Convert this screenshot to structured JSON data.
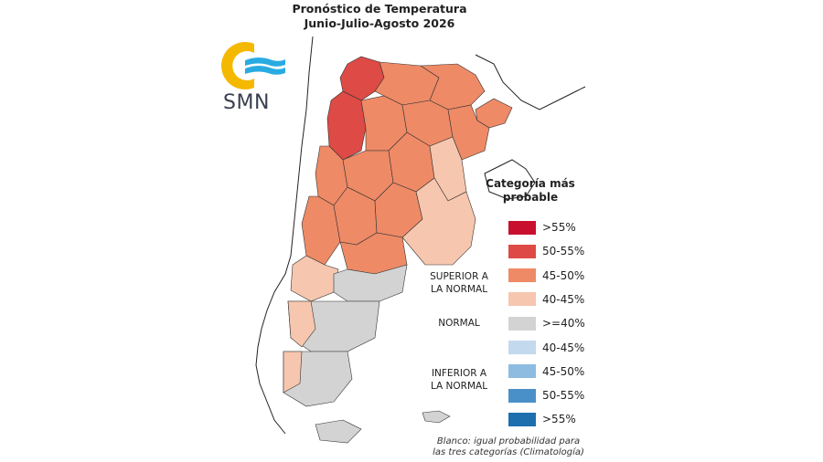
{
  "title": {
    "line1": "Pronóstico de Temperatura",
    "line2": "Junio-Julio-Agosto 2026"
  },
  "logo": {
    "text": "SMN",
    "colors": {
      "sun": "#F5B800",
      "waves": "#29ABE2",
      "text": "#3A3F51"
    }
  },
  "legend": {
    "title_line1": "Categoría más",
    "title_line2": "probable",
    "items": [
      {
        "label": ">55%",
        "color": "#C8102E"
      },
      {
        "label": "50-55%",
        "color": "#DE4A45"
      },
      {
        "label": "45-50%",
        "color": "#EE8A66"
      },
      {
        "label": "40-45%",
        "color": "#F6C6AE"
      },
      {
        "label": ">=40%",
        "color": "#D3D3D3"
      },
      {
        "label": "40-45%",
        "color": "#C3D9EE"
      },
      {
        "label": "45-50%",
        "color": "#8DBCE0"
      },
      {
        "label": "50-55%",
        "color": "#4A90C8"
      },
      {
        "label": ">55%",
        "color": "#1E6FAE"
      }
    ],
    "groups": {
      "superior_line1": "SUPERIOR A",
      "superior_line2": "LA NORMAL",
      "normal": "NORMAL",
      "inferior_line1": "INFERIOR A",
      "inferior_line2": "LA NORMAL"
    }
  },
  "footnote": {
    "line1": "Blanco: igual probabilidad para",
    "line2": "las tres categorías (Climatología)"
  }
}
